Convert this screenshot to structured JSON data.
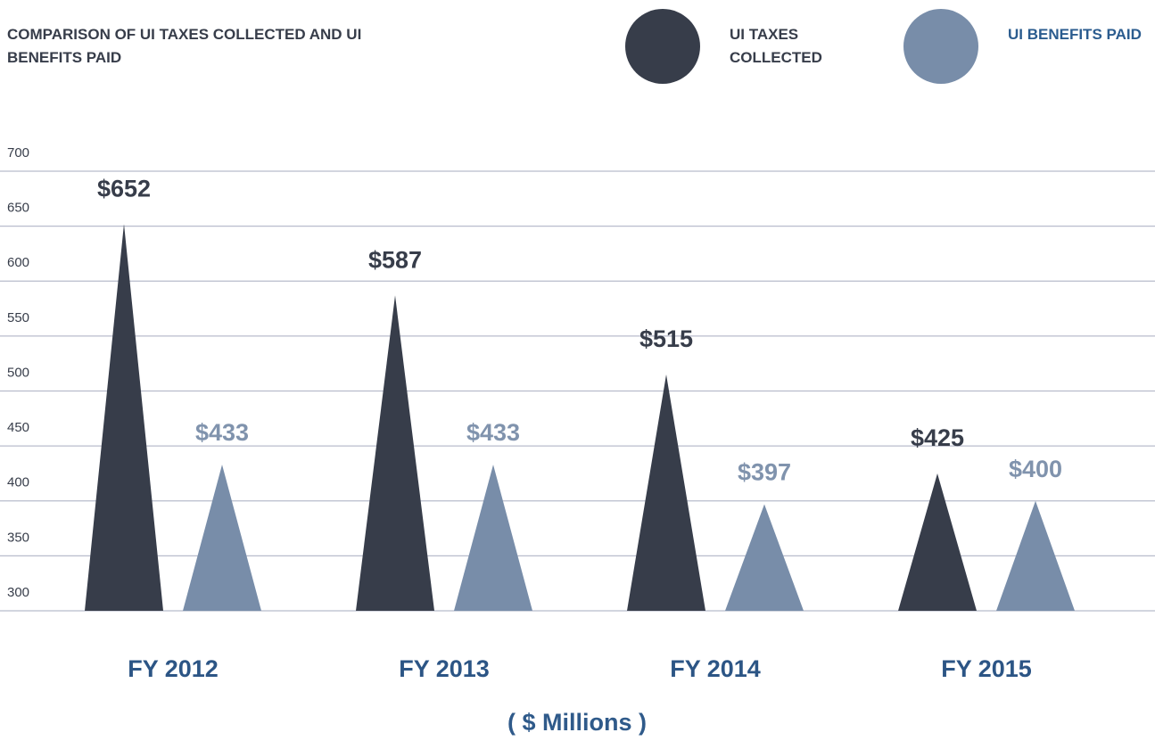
{
  "chart_data": {
    "type": "triangle-bar",
    "title": "COMPARISON OF UI TAXES COLLECTED AND UI BENEFITS PAID",
    "xlabel": "( $ Millions )",
    "categories": [
      "FY 2012",
      "FY 2013",
      "FY 2014",
      "FY 2015"
    ],
    "series": [
      {
        "name": "UI TAXES COLLECTED",
        "color": "#373d4a",
        "label_color": "#373d4a",
        "values": [
          652,
          587,
          515,
          425
        ],
        "value_labels": [
          "$652",
          "$587",
          "$515",
          "$425"
        ]
      },
      {
        "name": "UI BENEFITS PAID",
        "color": "#788da9",
        "label_color": "#2b5c8f",
        "values": [
          433,
          433,
          397,
          400
        ],
        "value_labels": [
          "$433",
          "$433",
          "$397",
          "$400"
        ]
      }
    ],
    "ylim": [
      300,
      700
    ],
    "yticks": [
      300,
      350,
      400,
      450,
      500,
      550,
      600,
      650,
      700
    ],
    "grid": true
  }
}
